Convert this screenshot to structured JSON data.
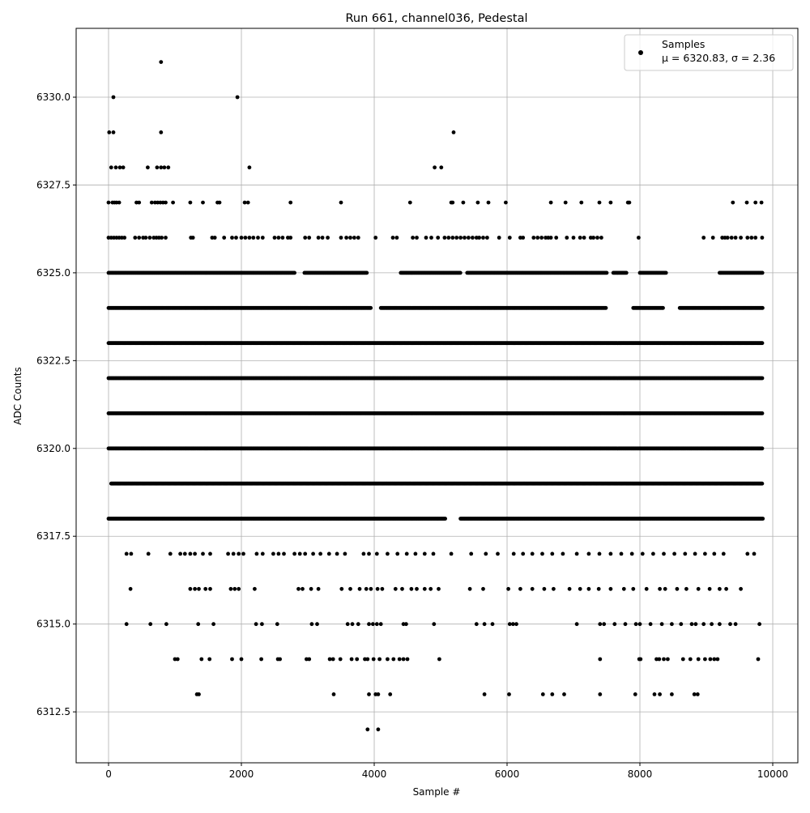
{
  "chart_data": {
    "type": "scatter",
    "title": "Run 661, channel036, Pedestal",
    "xlabel": "Sample #",
    "ylabel": "ADC Counts",
    "xlim": [
      -488,
      10378
    ],
    "ylim": [
      6311.05,
      6331.96
    ],
    "xticks": [
      0,
      2000,
      4000,
      6000,
      8000,
      10000
    ],
    "xtick_labels": [
      "0",
      "2000",
      "4000",
      "6000",
      "8000",
      "10000"
    ],
    "yticks": [
      6312.5,
      6315.0,
      6317.5,
      6320.0,
      6322.5,
      6325.0,
      6327.5,
      6330.0
    ],
    "ytick_labels": [
      "6312.5",
      "6315.0",
      "6317.5",
      "6320.0",
      "6322.5",
      "6325.0",
      "6327.5",
      "6330.0"
    ],
    "grid": true,
    "legend": {
      "placement": "top-right",
      "entries": [
        {
          "label": "Samples",
          "stats": "μ = 6320.83, σ = 2.36"
        }
      ]
    },
    "marker_color": "#000000",
    "dense_levels": [
      {
        "y": 6318,
        "x_ranges": [
          [
            0,
            5080
          ],
          [
            5300,
            9850
          ]
        ]
      },
      {
        "y": 6319,
        "x_ranges": [
          [
            40,
            9850
          ]
        ]
      },
      {
        "y": 6320,
        "x_ranges": [
          [
            0,
            9850
          ]
        ]
      },
      {
        "y": 6321,
        "x_ranges": [
          [
            0,
            9850
          ]
        ]
      },
      {
        "y": 6322,
        "x_ranges": [
          [
            0,
            9850
          ]
        ]
      },
      {
        "y": 6323,
        "x_ranges": [
          [
            0,
            9850
          ]
        ]
      },
      {
        "y": 6324,
        "x_ranges": [
          [
            0,
            3950
          ],
          [
            4100,
            7500
          ],
          [
            7900,
            8350
          ],
          [
            8600,
            9850
          ]
        ]
      },
      {
        "y": 6325,
        "x_ranges": [
          [
            0,
            2800
          ],
          [
            2950,
            3900
          ],
          [
            4400,
            5300
          ],
          [
            5400,
            7500
          ],
          [
            7600,
            7800
          ],
          [
            8000,
            8400
          ],
          [
            9200,
            9850
          ]
        ]
      }
    ],
    "points": [
      {
        "y": 6331,
        "x": [
          790
        ]
      },
      {
        "y": 6330,
        "x": [
          73,
          1940
        ]
      },
      {
        "y": 6329,
        "x": [
          10,
          73,
          790,
          5195
        ]
      },
      {
        "y": 6328,
        "x": [
          40,
          110,
          170,
          220,
          590,
          730,
          790,
          840,
          900,
          2120,
          4910,
          5010
        ]
      },
      {
        "y": 6327,
        "x": [
          0,
          60,
          90,
          120,
          160,
          420,
          460,
          650,
          700,
          740,
          780,
          820,
          860,
          970,
          1230,
          1420,
          1640,
          1670,
          2050,
          2100,
          2740,
          3500,
          4540,
          5160,
          5180,
          5340,
          5560,
          5720,
          5980,
          6660,
          6880,
          7120,
          7390,
          7560,
          7820,
          7840,
          9400,
          9610,
          9740,
          9830
        ]
      },
      {
        "y": 6326,
        "x": [
          0,
          40,
          80,
          120,
          160,
          200,
          240,
          400,
          460,
          520,
          560,
          620,
          680,
          720,
          760,
          800,
          860,
          1240,
          1270,
          1560,
          1600,
          1740,
          1860,
          1920,
          2000,
          2060,
          2120,
          2180,
          2250,
          2320,
          2500,
          2560,
          2620,
          2700,
          2740,
          2960,
          3020,
          3160,
          3220,
          3300,
          3500,
          3580,
          3640,
          3700,
          3760,
          4020,
          4280,
          4340,
          4580,
          4640,
          4780,
          4860,
          4960,
          5060,
          5120,
          5180,
          5240,
          5300,
          5360,
          5420,
          5480,
          5540,
          5580,
          5640,
          5700,
          5880,
          6040,
          6200,
          6240,
          6400,
          6460,
          6520,
          6580,
          6620,
          6660,
          6740,
          6900,
          7000,
          7100,
          7160,
          7260,
          7300,
          7360,
          7420,
          7980,
          8960,
          9100,
          9240,
          9280,
          9320,
          9380,
          9440,
          9520,
          9620,
          9680,
          9740,
          9840
        ]
      },
      {
        "y": 6317,
        "x": [
          270,
          340,
          600,
          930,
          1080,
          1150,
          1230,
          1300,
          1420,
          1530,
          1800,
          1880,
          1960,
          2030,
          2230,
          2320,
          2480,
          2560,
          2640,
          2800,
          2880,
          2960,
          3080,
          3190,
          3320,
          3440,
          3560,
          3840,
          3920,
          4040,
          4200,
          4350,
          4490,
          4620,
          4760,
          4890,
          5160,
          5460,
          5680,
          5860,
          6100,
          6240,
          6380,
          6530,
          6680,
          6840,
          7050,
          7230,
          7390,
          7560,
          7720,
          7880,
          8040,
          8200,
          8360,
          8520,
          8680,
          8830,
          8980,
          9120,
          9260,
          9620,
          9720
        ]
      },
      {
        "y": 6316,
        "x": [
          330,
          1230,
          1300,
          1360,
          1460,
          1530,
          1840,
          1900,
          1960,
          2200,
          2860,
          2920,
          3050,
          3160,
          3510,
          3640,
          3780,
          3880,
          3950,
          4050,
          4120,
          4320,
          4420,
          4560,
          4640,
          4760,
          4850,
          4970,
          5440,
          5640,
          6020,
          6200,
          6380,
          6560,
          6700,
          6940,
          7100,
          7230,
          7380,
          7560,
          7760,
          7900,
          8100,
          8300,
          8380,
          8560,
          8700,
          8880,
          9050,
          9200,
          9300,
          9520
        ]
      },
      {
        "y": 6315,
        "x": [
          270,
          630,
          870,
          1350,
          1580,
          2220,
          2310,
          2540,
          3060,
          3140,
          3600,
          3670,
          3760,
          3920,
          3980,
          4040,
          4100,
          4440,
          4480,
          4900,
          5540,
          5660,
          5780,
          6040,
          6090,
          6140,
          7050,
          7400,
          7460,
          7620,
          7780,
          7940,
          8000,
          8160,
          8330,
          8480,
          8620,
          8780,
          8840,
          8960,
          9080,
          9200,
          9360,
          9440,
          9800
        ]
      },
      {
        "y": 6314,
        "x": [
          1000,
          1040,
          1400,
          1520,
          1860,
          2000,
          2300,
          2550,
          2580,
          2980,
          3020,
          3330,
          3380,
          3490,
          3660,
          3740,
          3860,
          3900,
          3990,
          4080,
          4200,
          4290,
          4380,
          4440,
          4500,
          4980,
          7400,
          7990,
          8010,
          8250,
          8290,
          8360,
          8420,
          8650,
          8760,
          8880,
          8980,
          9060,
          9120,
          9170,
          9780
        ]
      },
      {
        "y": 6313,
        "x": [
          1330,
          1360,
          3390,
          3920,
          4020,
          4060,
          4240,
          5660,
          6030,
          6540,
          6680,
          6860,
          7400,
          7930,
          8220,
          8300,
          8480,
          8820,
          8870
        ]
      },
      {
        "y": 6312,
        "x": [
          3900,
          4060
        ]
      }
    ]
  }
}
